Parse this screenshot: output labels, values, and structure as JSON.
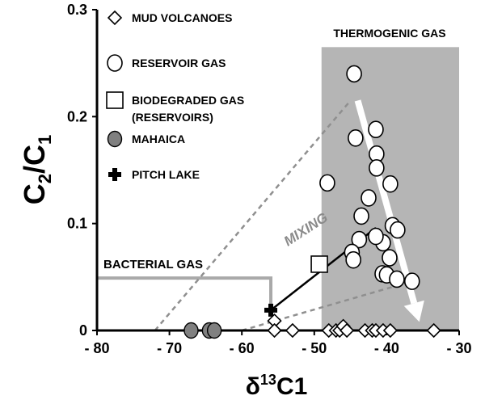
{
  "chart_data": {
    "type": "scatter",
    "title": "",
    "xlabel_prefix": "δ",
    "xlabel_sup": "13",
    "xlabel_suffix": "C1",
    "ylabel_main": "C",
    "ylabel_sub1": "2",
    "ylabel_slash": "/C",
    "ylabel_sub2": "1",
    "xlim": [
      -80,
      -30
    ],
    "ylim": [
      0,
      0.3
    ],
    "x_ticks": [
      {
        "value": -80,
        "label": "- 80"
      },
      {
        "value": -70,
        "label": "- 70"
      },
      {
        "value": -60,
        "label": "- 60"
      },
      {
        "value": -50,
        "label": "- 50"
      },
      {
        "value": -40,
        "label": "- 40"
      },
      {
        "value": -30,
        "label": "- 30"
      }
    ],
    "y_ticks": [
      {
        "value": 0,
        "label": "0"
      },
      {
        "value": 0.1,
        "label": "0.1"
      },
      {
        "value": 0.2,
        "label": "0.2"
      },
      {
        "value": 0.3,
        "label": "0.3"
      }
    ],
    "legend": [
      {
        "marker": "diamond",
        "label": "MUD VOLCANOES"
      },
      {
        "marker": "circle",
        "label": "RESERVOIR GAS"
      },
      {
        "marker": "square",
        "label": "BIODEGRADED GAS",
        "label2": "(RESERVOIRS)"
      },
      {
        "marker": "filled-circle",
        "label": "MAHAICA"
      },
      {
        "marker": "cross",
        "label": "PITCH LAKE"
      }
    ],
    "series": [
      {
        "name": "MUD VOLCANOES",
        "marker": "diamond",
        "points": [
          {
            "x": -55.5,
            "y": 0.009
          },
          {
            "x": -55.5,
            "y": 0.0
          },
          {
            "x": -53,
            "y": 0.0
          },
          {
            "x": -48,
            "y": 0.0
          },
          {
            "x": -47,
            "y": 0.0
          },
          {
            "x": -46.5,
            "y": 0.0
          },
          {
            "x": -46,
            "y": 0.004
          },
          {
            "x": -45.5,
            "y": 0.0
          },
          {
            "x": -43,
            "y": 0.0
          },
          {
            "x": -42,
            "y": 0.0
          },
          {
            "x": -41.5,
            "y": 0.0
          },
          {
            "x": -40.5,
            "y": 0.0
          },
          {
            "x": -39.5,
            "y": 0.0
          },
          {
            "x": -33.5,
            "y": 0.0
          }
        ]
      },
      {
        "name": "RESERVOIR GAS",
        "marker": "circle",
        "points": [
          {
            "x": -44.5,
            "y": 0.24
          },
          {
            "x": -44.3,
            "y": 0.18
          },
          {
            "x": -41.5,
            "y": 0.188
          },
          {
            "x": -41.4,
            "y": 0.165
          },
          {
            "x": -41.4,
            "y": 0.152
          },
          {
            "x": -48.2,
            "y": 0.138
          },
          {
            "x": -39.5,
            "y": 0.137
          },
          {
            "x": -42.5,
            "y": 0.124
          },
          {
            "x": -43.5,
            "y": 0.107
          },
          {
            "x": -39.2,
            "y": 0.098
          },
          {
            "x": -38.5,
            "y": 0.094
          },
          {
            "x": -43.8,
            "y": 0.085
          },
          {
            "x": -40.5,
            "y": 0.082
          },
          {
            "x": -41.5,
            "y": 0.088
          },
          {
            "x": -44.8,
            "y": 0.073
          },
          {
            "x": -44.6,
            "y": 0.066
          },
          {
            "x": -39.6,
            "y": 0.068
          },
          {
            "x": -40.6,
            "y": 0.053
          },
          {
            "x": -40.0,
            "y": 0.052
          },
          {
            "x": -38.6,
            "y": 0.048
          },
          {
            "x": -36.5,
            "y": 0.046
          }
        ]
      },
      {
        "name": "BIODEGRADED GAS (RESERVOIRS)",
        "marker": "square",
        "points": [
          {
            "x": -49.3,
            "y": 0.062
          }
        ]
      },
      {
        "name": "MAHAICA",
        "marker": "filled-circle",
        "points": [
          {
            "x": -67,
            "y": 0.0
          },
          {
            "x": -64.5,
            "y": 0.0
          },
          {
            "x": -63.8,
            "y": 0.0
          }
        ]
      },
      {
        "name": "PITCH LAKE",
        "marker": "cross",
        "points": [
          {
            "x": -56,
            "y": 0.019
          }
        ]
      }
    ],
    "regions": [
      {
        "name": "THERMOGENIC GAS",
        "x": [
          -49,
          -30
        ],
        "y": [
          0,
          0.265
        ],
        "color": "#b5b5b5"
      }
    ],
    "bacterial_bracket": {
      "x": [
        -80,
        -56
      ],
      "y": 0.049,
      "color": "#a9a9a9"
    },
    "lines": [
      {
        "style": "solid",
        "points": [
          {
            "x": -56,
            "y": 0.019
          },
          {
            "x": -41.5,
            "y": 0.096
          }
        ]
      },
      {
        "style": "dashed",
        "points": [
          {
            "x": -72,
            "y": 0.0
          },
          {
            "x": -45,
            "y": 0.215
          }
        ]
      },
      {
        "style": "dashed",
        "points": [
          {
            "x": -60,
            "y": 0.0
          },
          {
            "x": -36.5,
            "y": 0.046
          }
        ]
      }
    ],
    "arrow": {
      "from": {
        "x": -44,
        "y": 0.215
      },
      "to": {
        "x": -35.5,
        "y": 0.008
      },
      "color": "#ffffff"
    },
    "annotations": {
      "thermogenic": "THERMOGENIC GAS",
      "bacterial": "BACTERIAL GAS",
      "mixing": "MIXING"
    },
    "colors": {
      "region": "#b5b5b5",
      "mixing_text": "#8a8a8a",
      "filled_marker": "#808080",
      "dashed_line": "#8f8f8f"
    }
  }
}
